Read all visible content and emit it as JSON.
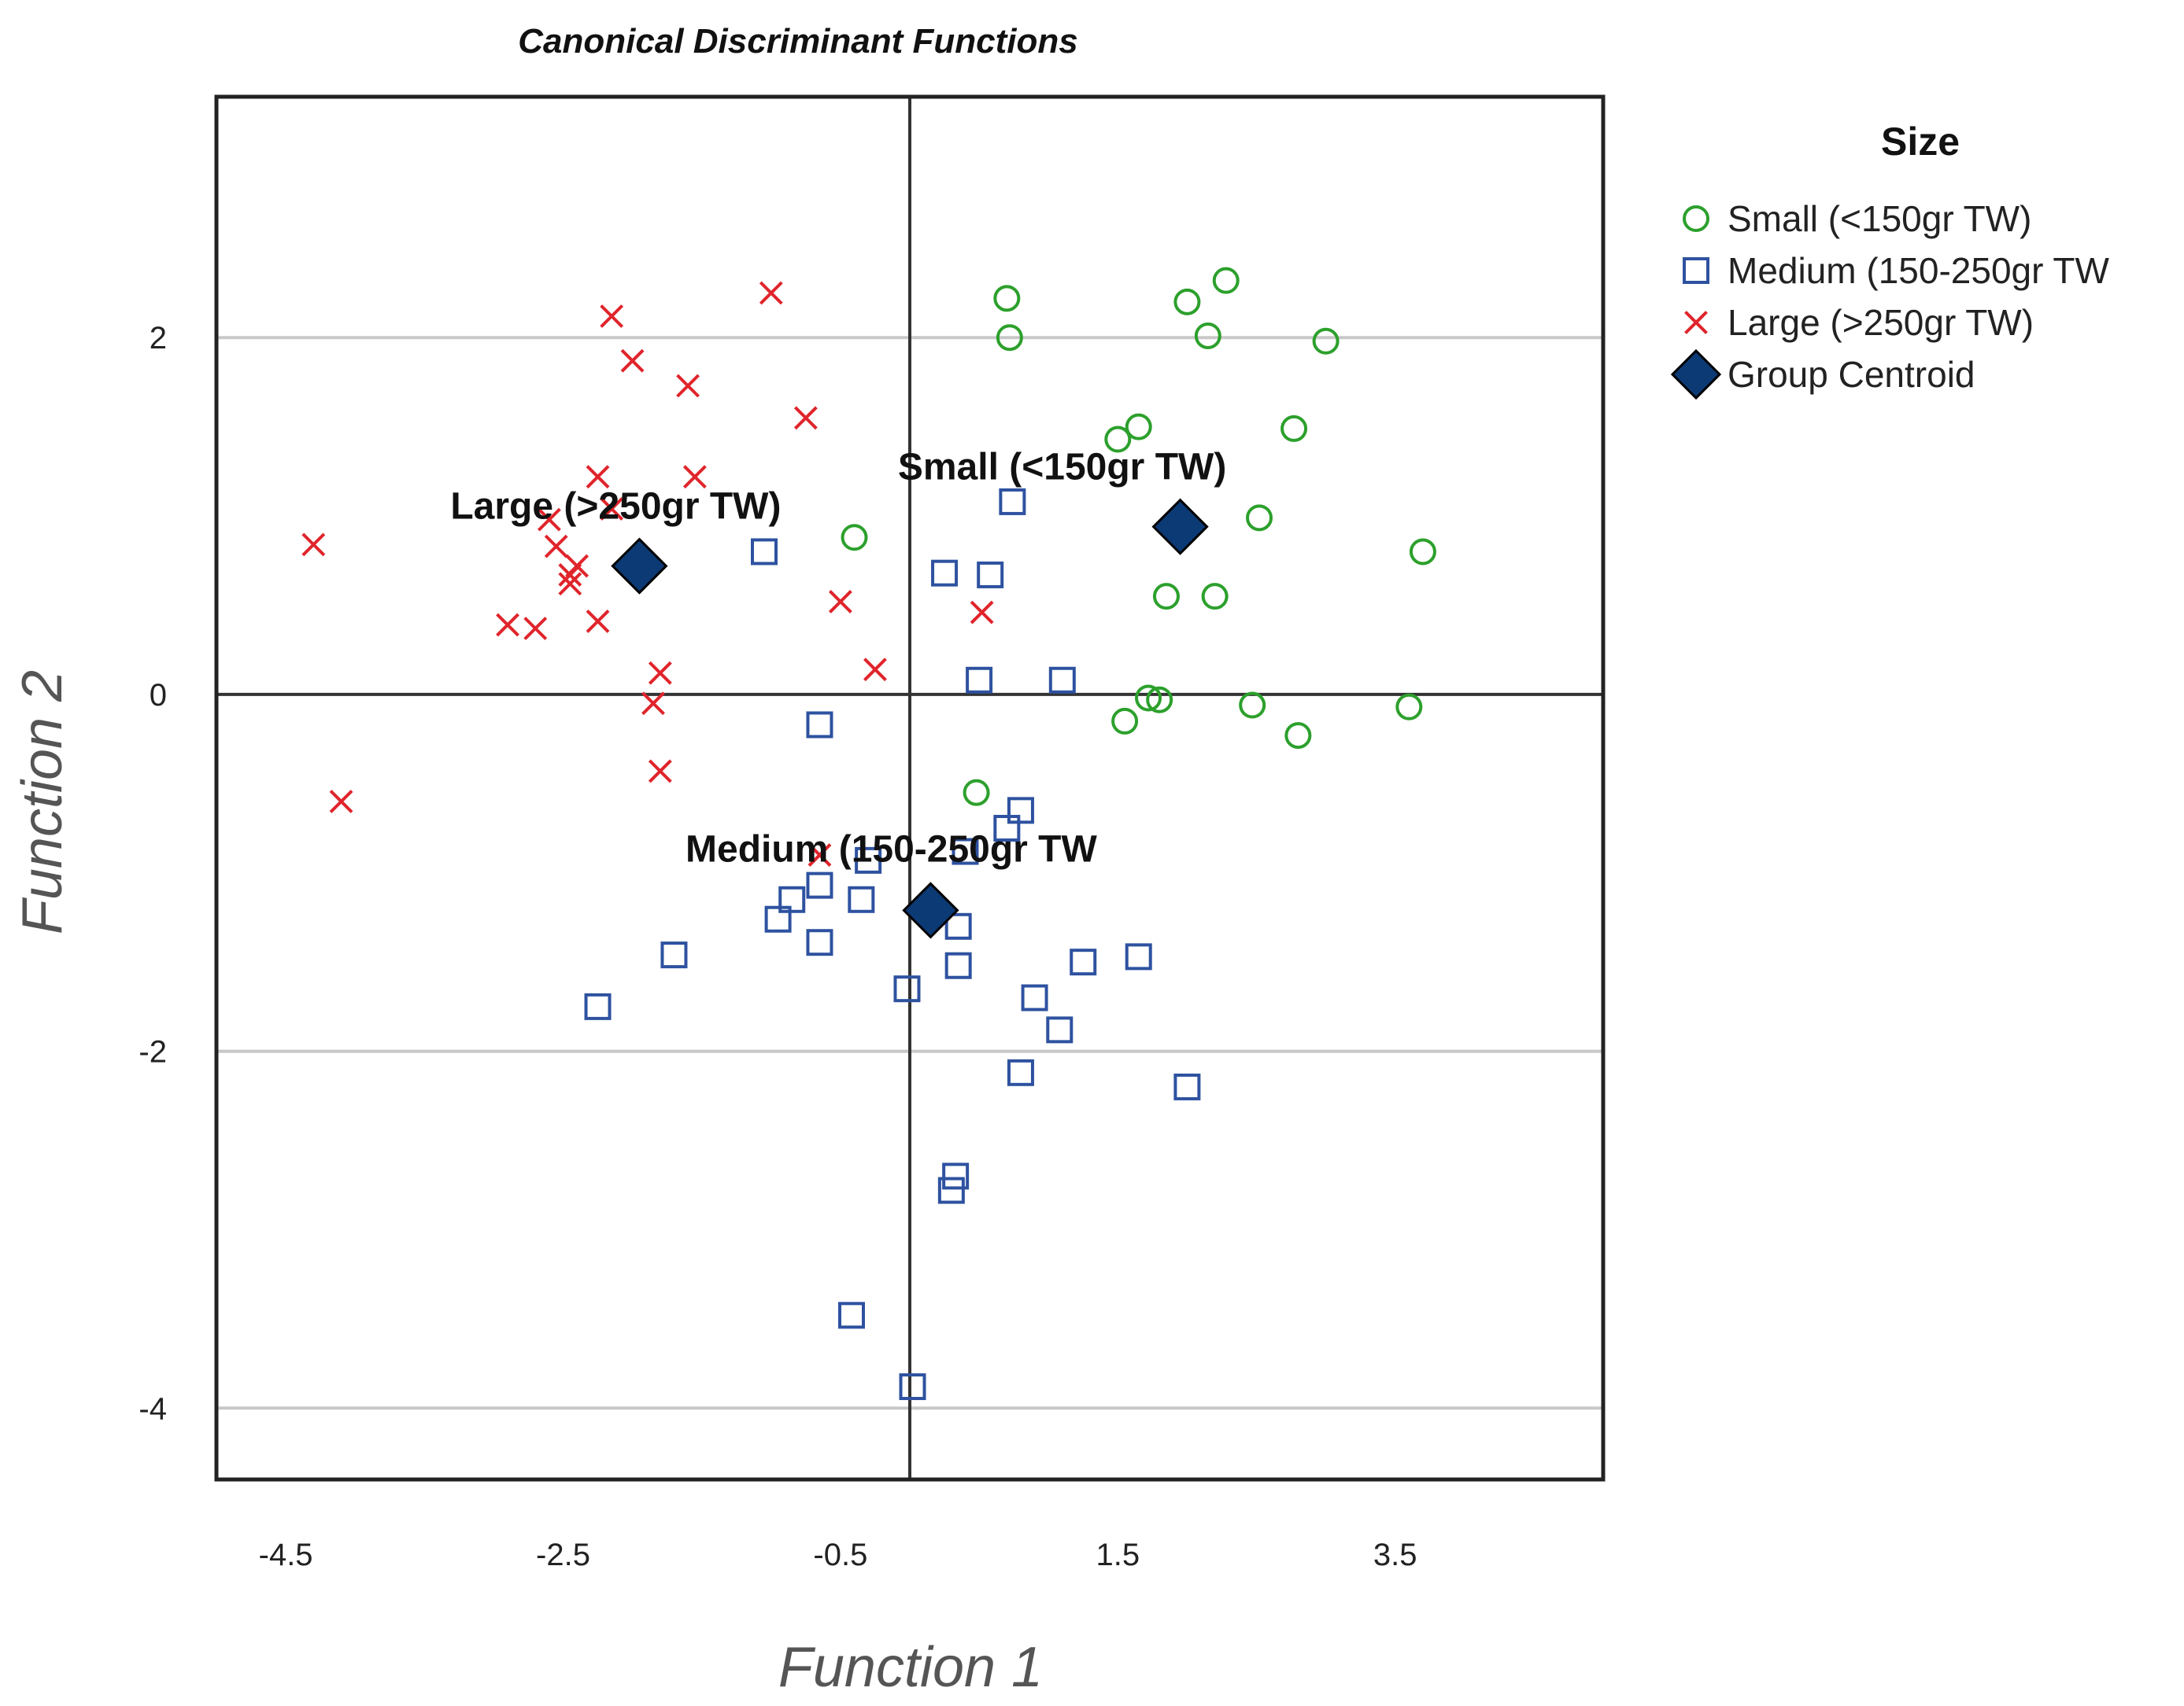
{
  "chart_data": {
    "type": "scatter",
    "title": "Canonical Discriminant Functions",
    "xlabel": "Function 1",
    "ylabel": "Function 2",
    "xlim": [
      -5,
      5
    ],
    "ylim": [
      -4.4,
      3.35
    ],
    "xticks": [
      -4.5,
      -2.5,
      -0.5,
      1.5,
      3.5
    ],
    "xtick_labels": [
      "-4.5",
      "-2.5",
      "-0.5",
      "1.5",
      "3.5"
    ],
    "yticks": [
      2,
      0,
      -2,
      -4
    ],
    "ytick_labels": [
      "2",
      "0",
      "-2",
      "-4"
    ],
    "gridlines_y": [
      2,
      -2,
      -4
    ],
    "reference_lines": {
      "x": 0,
      "y": 0
    },
    "legend": {
      "title": "Size",
      "entries": [
        "Small (<150gr TW)",
        "Medium (150-250gr TW",
        "Large (>250gr TW)",
        "Group Centroid"
      ]
    },
    "series": [
      {
        "name": "Small (<150gr TW)",
        "marker": "circle",
        "color": "#2ca02c",
        "points": [
          [
            0.7,
            2.22
          ],
          [
            0.72,
            2.0
          ],
          [
            2.0,
            2.2
          ],
          [
            2.28,
            2.32
          ],
          [
            2.15,
            2.01
          ],
          [
            3.0,
            1.98
          ],
          [
            1.5,
            1.43
          ],
          [
            1.65,
            1.5
          ],
          [
            2.77,
            1.49
          ],
          [
            2.52,
            0.99
          ],
          [
            3.7,
            0.8
          ],
          [
            -0.4,
            0.88
          ],
          [
            1.85,
            0.55
          ],
          [
            2.2,
            0.55
          ],
          [
            1.72,
            -0.02
          ],
          [
            1.8,
            -0.03
          ],
          [
            1.55,
            -0.15
          ],
          [
            2.47,
            -0.06
          ],
          [
            2.8,
            -0.23
          ],
          [
            3.6,
            -0.07
          ],
          [
            0.48,
            -0.55
          ]
        ]
      },
      {
        "name": "Medium (150-250gr TW",
        "marker": "square",
        "color": "#2e52a0",
        "points": [
          [
            0.74,
            1.08
          ],
          [
            -1.05,
            0.8
          ],
          [
            0.25,
            0.68
          ],
          [
            0.58,
            0.67
          ],
          [
            0.5,
            0.08
          ],
          [
            1.1,
            0.08
          ],
          [
            -0.65,
            -0.17
          ],
          [
            0.8,
            -0.65
          ],
          [
            0.7,
            -0.75
          ],
          [
            0.4,
            -0.88
          ],
          [
            -0.3,
            -0.93
          ],
          [
            -0.65,
            -1.07
          ],
          [
            -0.85,
            -1.15
          ],
          [
            -0.35,
            -1.15
          ],
          [
            -0.95,
            -1.26
          ],
          [
            -0.65,
            -1.39
          ],
          [
            0.35,
            -1.3
          ],
          [
            -2.25,
            -1.75
          ],
          [
            -1.7,
            -1.46
          ],
          [
            0.35,
            -1.52
          ],
          [
            -0.02,
            -1.65
          ],
          [
            0.9,
            -1.7
          ],
          [
            1.25,
            -1.5
          ],
          [
            1.65,
            -1.47
          ],
          [
            1.08,
            -1.88
          ],
          [
            0.8,
            -2.12
          ],
          [
            2.0,
            -2.2
          ],
          [
            0.33,
            -2.7
          ],
          [
            0.3,
            -2.78
          ],
          [
            -0.42,
            -3.48
          ],
          [
            0.02,
            -3.88
          ]
        ]
      },
      {
        "name": "Large (>250gr TW)",
        "marker": "x",
        "color": "#e0242b",
        "points": [
          [
            -1.0,
            2.25
          ],
          [
            -2.15,
            2.12
          ],
          [
            -2.0,
            1.87
          ],
          [
            -1.6,
            1.73
          ],
          [
            -0.75,
            1.55
          ],
          [
            -2.25,
            1.22
          ],
          [
            -1.55,
            1.22
          ],
          [
            -2.15,
            1.04
          ],
          [
            -2.6,
            0.98
          ],
          [
            -4.3,
            0.84
          ],
          [
            -2.55,
            0.83
          ],
          [
            -2.4,
            0.72
          ],
          [
            -2.45,
            0.67
          ],
          [
            -2.45,
            0.62
          ],
          [
            -0.5,
            0.52
          ],
          [
            0.52,
            0.46
          ],
          [
            -2.9,
            0.39
          ],
          [
            -2.7,
            0.37
          ],
          [
            -2.25,
            0.41
          ],
          [
            -1.8,
            0.12
          ],
          [
            -0.25,
            0.14
          ],
          [
            -1.85,
            -0.05
          ],
          [
            -1.8,
            -0.43
          ],
          [
            -4.1,
            -0.6
          ],
          [
            -0.65,
            -0.9
          ]
        ]
      }
    ],
    "centroids": [
      {
        "label": "Large (>250gr TW)",
        "x": -1.95,
        "y": 0.72
      },
      {
        "label": "Small (<150gr TW)",
        "x": 1.95,
        "y": 0.94
      },
      {
        "label": "Medium (150-250gr TW",
        "x": 0.15,
        "y": -1.21
      }
    ]
  },
  "colors": {
    "small": "#2ca02c",
    "medium": "#2e52a0",
    "large": "#e0242b",
    "centroid": "#0b3a75",
    "grid": "#c8c8c8",
    "frame": "#222222"
  }
}
